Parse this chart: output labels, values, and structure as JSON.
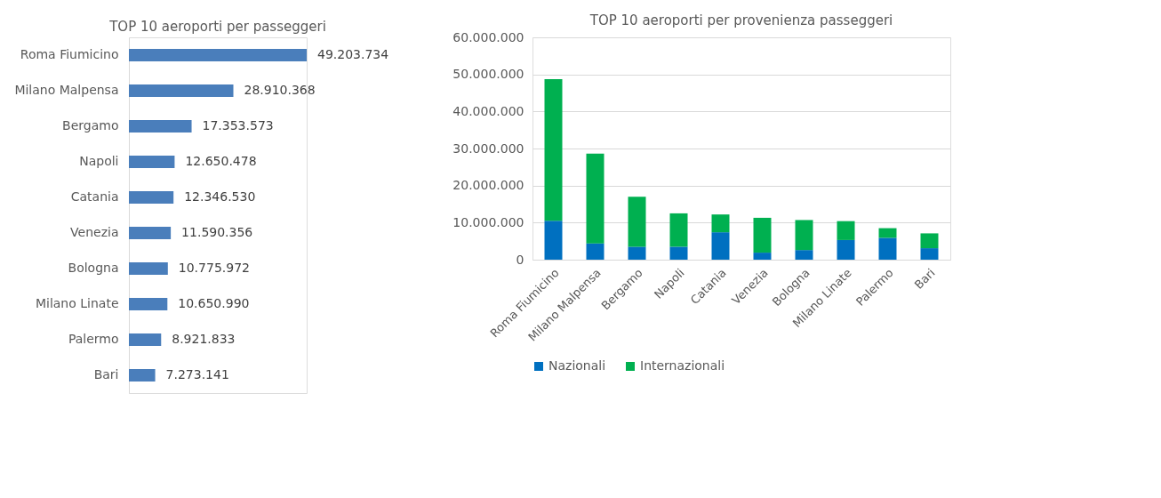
{
  "chart_data": [
    {
      "type": "bar",
      "orientation": "horizontal",
      "title": "TOP 10 aeroporti per passeggeri",
      "categories": [
        "Roma Fiumicino",
        "Milano Malpensa",
        "Bergamo",
        "Napoli",
        "Catania",
        "Venezia",
        "Bologna",
        "Milano Linate",
        "Palermo",
        "Bari"
      ],
      "values": [
        49203734,
        28910368,
        17353573,
        12650478,
        12346530,
        11590356,
        10775972,
        10650990,
        8921833,
        7273141
      ],
      "value_labels": [
        "49.203.734",
        "28.910.368",
        "17.353.573",
        "12.650.478",
        "12.346.530",
        "11.590.356",
        "10.775.972",
        "10.650.990",
        "8.921.833",
        "7.273.141"
      ],
      "color": "#4a7ebb",
      "tick_labels": "y",
      "grid": false
    },
    {
      "type": "bar",
      "stacked": true,
      "title": "TOP 10 aeroporti per provenienza passeggeri",
      "categories": [
        "Roma Fiumicino",
        "Milano Malpensa",
        "Bergamo",
        "Napoli",
        "Catania",
        "Venezia",
        "Bologna",
        "Milano Linate",
        "Palermo",
        "Bari"
      ],
      "series": [
        {
          "name": "Nazionali",
          "color": "#0070c0",
          "values": [
            10500000,
            4400000,
            3500000,
            3500000,
            7400000,
            1900000,
            2600000,
            5300000,
            5900000,
            3100000
          ]
        },
        {
          "name": "Internazionali",
          "color": "#00b050",
          "values": [
            38200000,
            24200000,
            13500000,
            9000000,
            4800000,
            9400000,
            8100000,
            5100000,
            2600000,
            4000000
          ]
        }
      ],
      "ylim": [
        0,
        60000000
      ],
      "yticks": [
        0,
        {
          "value": 10000000,
          "label": "10.000.000"
        },
        {
          "value": 20000000,
          "label": "20.000.000"
        },
        {
          "value": 30000000,
          "label": "30.000.000"
        },
        {
          "value": 40000000,
          "label": "40.000.000"
        },
        {
          "value": 50000000,
          "label": "50.000.000"
        },
        {
          "value": 60000000,
          "label": "60.000.000"
        }
      ],
      "grid": "y",
      "legend": "bottom"
    }
  ]
}
